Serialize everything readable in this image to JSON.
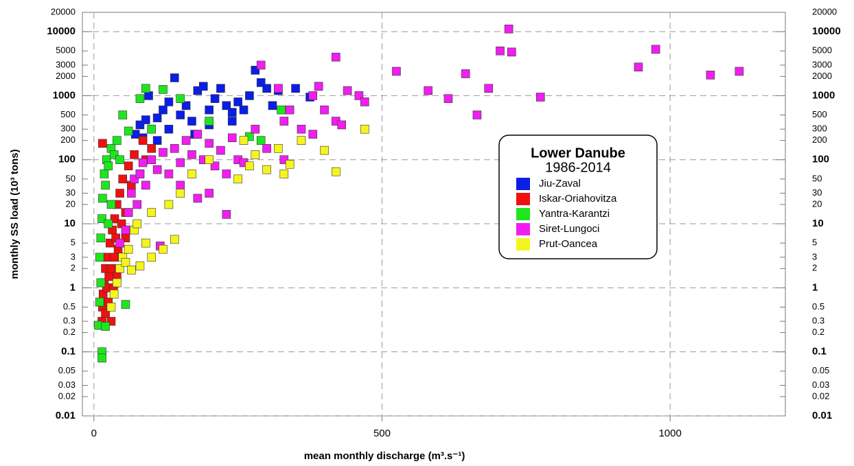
{
  "chart_data": {
    "type": "scatter",
    "legend_title": "Lower Danube",
    "legend_subtitle": "1986-2014",
    "xlabel": "mean monthly discharge (m³.s⁻¹)",
    "ylabel": "monthly SS load (10³ tons)",
    "xlim": [
      -20,
      1200
    ],
    "xticks": [
      0,
      500,
      1000
    ],
    "ylim": [
      0.01,
      20000
    ],
    "ylog": true,
    "yticks": [
      0.01,
      0.1,
      1,
      10,
      100,
      1000,
      10000
    ],
    "yticks_minor": [
      0.02,
      0.03,
      0.05,
      0.2,
      0.3,
      0.5,
      2,
      3,
      5,
      20,
      30,
      50,
      200,
      300,
      500,
      2000,
      3000,
      5000,
      20000
    ],
    "grid": true,
    "series": [
      {
        "name": "Jiu-Zaval",
        "color": "#0a1ee6",
        "x": [
          72,
          80,
          90,
          95,
          100,
          110,
          120,
          130,
          140,
          150,
          160,
          170,
          180,
          190,
          200,
          210,
          220,
          230,
          240,
          250,
          260,
          270,
          280,
          290,
          300,
          310,
          320,
          350,
          375,
          130,
          110,
          85,
          200,
          240,
          175
        ],
        "y": [
          250,
          350,
          420,
          1000,
          300,
          450,
          600,
          800,
          1900,
          500,
          700,
          400,
          1200,
          1400,
          600,
          900,
          1300,
          700,
          550,
          800,
          600,
          1000,
          2500,
          1600,
          1300,
          700,
          1200,
          1300,
          950,
          300,
          200,
          220,
          350,
          400,
          250
        ]
      },
      {
        "name": "Iskar-Oriahovitza",
        "color": "#f01010",
        "x": [
          12,
          14,
          15,
          16,
          18,
          20,
          20,
          22,
          24,
          25,
          26,
          28,
          30,
          30,
          32,
          35,
          36,
          38,
          40,
          42,
          45,
          48,
          50,
          55,
          60,
          65,
          70,
          80,
          85,
          90,
          100,
          15,
          40,
          34,
          55
        ],
        "y": [
          0.26,
          0.3,
          0.5,
          0.8,
          1.2,
          0.4,
          2,
          1,
          3,
          0.6,
          1.5,
          5,
          2,
          0.3,
          8,
          3,
          12,
          6,
          20,
          4,
          30,
          10,
          50,
          15,
          80,
          40,
          120,
          60,
          200,
          100,
          150,
          180,
          1.5,
          1.0,
          6
        ]
      },
      {
        "name": "Yantra-Karantzi",
        "color": "#1ee61e",
        "x": [
          8,
          10,
          12,
          14,
          14,
          10,
          12,
          14,
          15,
          18,
          20,
          22,
          25,
          30,
          35,
          40,
          45,
          50,
          60,
          80,
          90,
          100,
          120,
          150,
          200,
          270,
          290,
          325,
          55,
          20,
          25,
          30
        ],
        "y": [
          0.26,
          0.6,
          1.2,
          0.1,
          0.08,
          3,
          6,
          12,
          25,
          60,
          40,
          100,
          80,
          150,
          120,
          200,
          100,
          500,
          280,
          900,
          1300,
          300,
          1250,
          900,
          400,
          230,
          200,
          600,
          0.55,
          0.25,
          10,
          20
        ]
      },
      {
        "name": "Siret-Lungoci",
        "color": "#f01ef0",
        "x": [
          45,
          55,
          60,
          65,
          70,
          75,
          80,
          85,
          90,
          100,
          110,
          120,
          130,
          140,
          150,
          160,
          170,
          180,
          190,
          200,
          210,
          220,
          230,
          240,
          250,
          260,
          280,
          290,
          300,
          320,
          330,
          340,
          360,
          380,
          390,
          400,
          420,
          430,
          440,
          460,
          470,
          525,
          580,
          615,
          645,
          665,
          685,
          705,
          720,
          725,
          775,
          945,
          975,
          1070,
          1120,
          115,
          230,
          180,
          150,
          200,
          420,
          380,
          330
        ],
        "y": [
          5,
          8,
          15,
          30,
          50,
          20,
          60,
          90,
          40,
          100,
          70,
          130,
          60,
          150,
          90,
          200,
          120,
          250,
          100,
          180,
          80,
          140,
          60,
          220,
          100,
          90,
          300,
          3000,
          150,
          1300,
          100,
          600,
          300,
          250,
          1400,
          600,
          400,
          350,
          1200,
          1000,
          800,
          2400,
          1200,
          900,
          2200,
          500,
          1300,
          5000,
          11000,
          4800,
          950,
          2800,
          5300,
          2100,
          2400,
          4.5,
          14,
          25,
          40,
          30,
          4000,
          1000,
          400
        ]
      },
      {
        "name": "Prut-Oancea",
        "color": "#f5f51e",
        "x": [
          30,
          35,
          40,
          45,
          50,
          55,
          60,
          65,
          70,
          80,
          90,
          100,
          120,
          140,
          150,
          170,
          200,
          250,
          270,
          280,
          300,
          320,
          330,
          340,
          360,
          400,
          420,
          470,
          100,
          75,
          130,
          260
        ],
        "y": [
          0.5,
          0.8,
          1.2,
          2,
          3,
          2.5,
          4,
          1.9,
          8,
          2.2,
          5,
          3,
          4,
          5.7,
          30,
          60,
          100,
          50,
          80,
          120,
          70,
          150,
          60,
          85,
          200,
          140,
          65,
          300,
          15,
          10,
          20,
          200
        ]
      }
    ]
  }
}
